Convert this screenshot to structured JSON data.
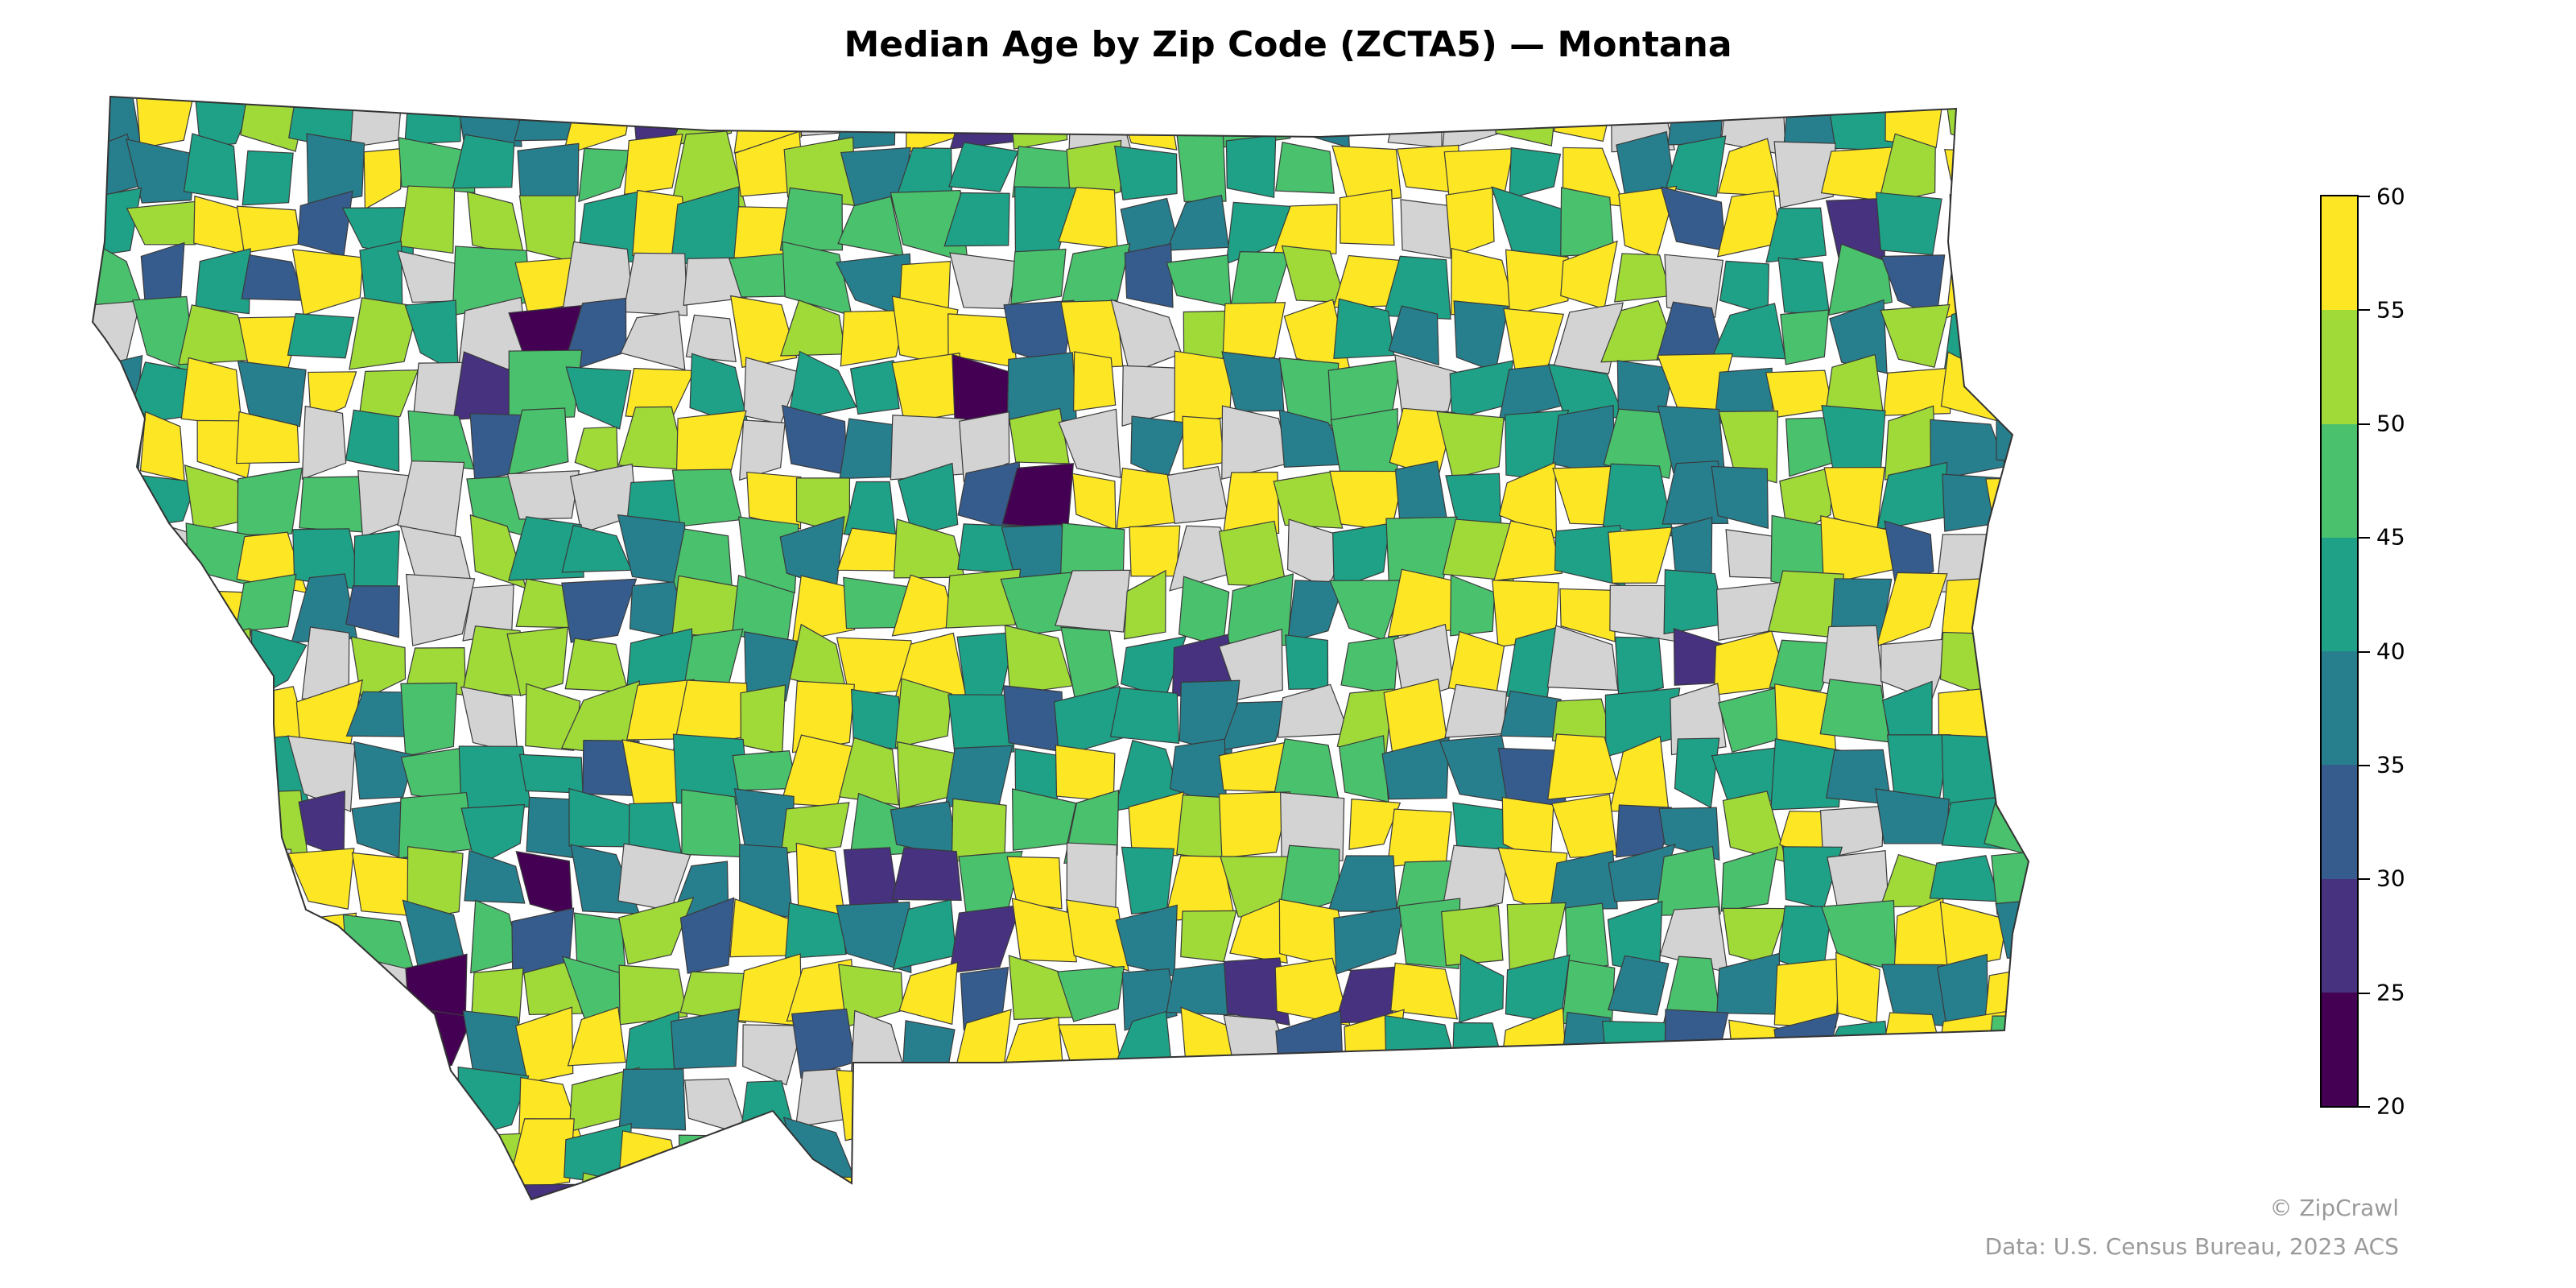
{
  "title": "Median Age by Zip Code (ZCTA5) — Montana",
  "colorbar": {
    "bins": [
      {
        "min": 55,
        "max": 60,
        "color": "#fde725"
      },
      {
        "min": 50,
        "max": 55,
        "color": "#a0da39"
      },
      {
        "min": 45,
        "max": 50,
        "color": "#4ac16d"
      },
      {
        "min": 40,
        "max": 45,
        "color": "#1fa187"
      },
      {
        "min": 35,
        "max": 40,
        "color": "#277f8e"
      },
      {
        "min": 30,
        "max": 35,
        "color": "#365c8d"
      },
      {
        "min": 25,
        "max": 30,
        "color": "#46327e"
      },
      {
        "min": 20,
        "max": 25,
        "color": "#440154"
      }
    ],
    "ticks": [
      "60",
      "55",
      "50",
      "45",
      "40",
      "35",
      "30",
      "25",
      "20"
    ],
    "no_data_color": "#d3d3d3"
  },
  "credits": {
    "line1": "© ZipCrawl",
    "line2": "Data: U.S. Census Bureau, 2023 ACS"
  }
}
